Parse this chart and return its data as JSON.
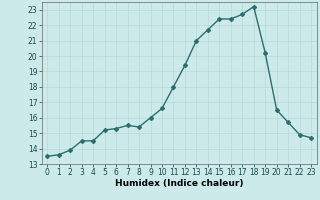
{
  "x": [
    0,
    1,
    2,
    3,
    4,
    5,
    6,
    7,
    8,
    9,
    10,
    11,
    12,
    13,
    14,
    15,
    16,
    17,
    18,
    19,
    20,
    21,
    22,
    23
  ],
  "y": [
    13.5,
    13.6,
    13.9,
    14.5,
    14.5,
    15.2,
    15.3,
    15.5,
    15.4,
    16.0,
    16.6,
    18.0,
    19.4,
    21.0,
    21.7,
    22.4,
    22.4,
    22.7,
    23.2,
    20.2,
    16.5,
    15.7,
    14.9,
    14.7
  ],
  "xlabel": "Humidex (Indice chaleur)",
  "xlim": [
    -0.5,
    23.5
  ],
  "ylim": [
    13,
    23.5
  ],
  "yticks": [
    13,
    14,
    15,
    16,
    17,
    18,
    19,
    20,
    21,
    22,
    23
  ],
  "xticks": [
    0,
    1,
    2,
    3,
    4,
    5,
    6,
    7,
    8,
    9,
    10,
    11,
    12,
    13,
    14,
    15,
    16,
    17,
    18,
    19,
    20,
    21,
    22,
    23
  ],
  "line_color": "#2d6e6e",
  "marker": "D",
  "marker_size": 2.0,
  "line_width": 1.0,
  "bg_color": "#cceaea",
  "grid_color": "#b8d8d8",
  "xlabel_fontsize": 6.5,
  "tick_fontsize": 5.5
}
